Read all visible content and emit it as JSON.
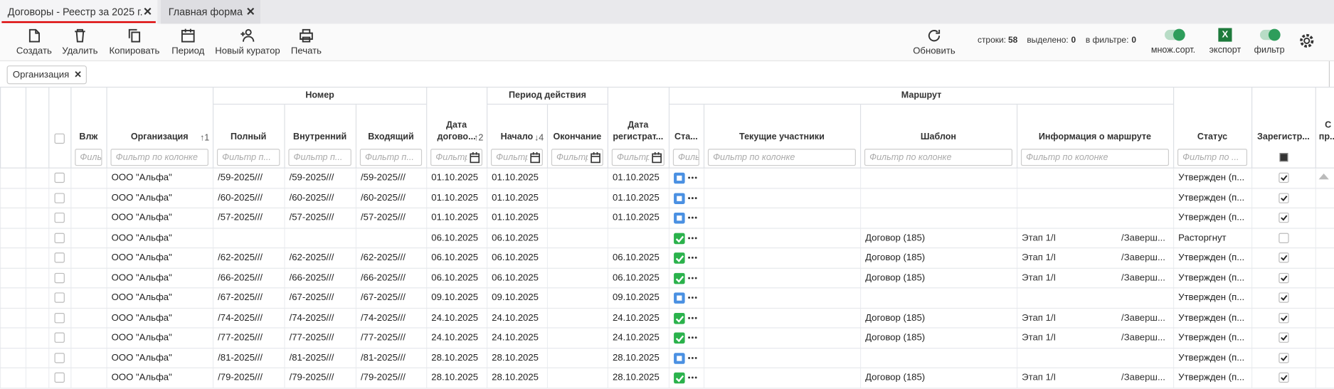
{
  "tabs": [
    {
      "label": "Договоры - Реестр за 2025 г.",
      "close": "✕"
    },
    {
      "label": "Главная форма",
      "close": "✕"
    }
  ],
  "toolbar": {
    "buttons": [
      "Создать",
      "Удалить",
      "Копировать",
      "Период",
      "Новый куратор",
      "Печать"
    ],
    "refresh": "Обновить",
    "status": [
      {
        "label": "строки:",
        "value": "58"
      },
      {
        "label": "выделено:",
        "value": "0"
      },
      {
        "label": "в фильтре:",
        "value": "0"
      }
    ],
    "toggles": {
      "multisort": "множ.сорт.",
      "export": "экспорт",
      "export_icon": "X",
      "filter": "фильтр"
    }
  },
  "filter_chip": {
    "label": "Организация",
    "close": "✕"
  },
  "table": {
    "groups": [
      "Номер",
      "Период действия",
      "Маршрут"
    ],
    "columns": [
      {
        "label": "Влж",
        "filter": "Фильт..."
      },
      {
        "label": "Организация",
        "sort": "↑1",
        "filter": "Фильтр по колонке"
      },
      {
        "label": "Полный",
        "filter": "Фильтр п..."
      },
      {
        "label": "Внутренний",
        "filter": "Фильтр п..."
      },
      {
        "label": "Входящий",
        "filter": "Фильтр п..."
      },
      {
        "label": "Дата догово...",
        "sort": "↑2",
        "filter": "Фильтр"
      },
      {
        "label": "Начало",
        "sort": "↓4",
        "filter": "Фильтр"
      },
      {
        "label": "Окончание",
        "filter": "Фильтр"
      },
      {
        "label": "Дата регистрат...",
        "filter": "Фильтр"
      },
      {
        "label": "Ста...",
        "filter": "Фильт..."
      },
      {
        "label": "Текущие участники",
        "filter": "Фильтр по колонке"
      },
      {
        "label": "Шаблон",
        "filter": "Фильтр по колонке"
      },
      {
        "label": "Информация о маршруте",
        "filter": "Фильтр по колонке"
      },
      {
        "label": "Статус",
        "filter": "Фильтр по ..."
      },
      {
        "label": "Зарегистр..."
      },
      {
        "label": "С пр..."
      }
    ],
    "rows": [
      {
        "org": "ООО \"Альфа\"",
        "full": "/59-2025///",
        "internal": "/59-2025///",
        "incoming": "/59-2025///",
        "contract_date": "01.10.2025",
        "start": "01.10.2025",
        "end": null,
        "reg_date": "01.10.2025",
        "stage_color": "#4a90e2",
        "template": null,
        "route": null,
        "status": "Утвержден (п...",
        "registered": true
      },
      {
        "org": "ООО \"Альфа\"",
        "full": "/60-2025///",
        "internal": "/60-2025///",
        "incoming": "/60-2025///",
        "contract_date": "01.10.2025",
        "start": "01.10.2025",
        "end": null,
        "reg_date": "01.10.2025",
        "stage_color": "#4a90e2",
        "template": null,
        "route": null,
        "status": "Утвержден (п...",
        "registered": true
      },
      {
        "org": "ООО \"Альфа\"",
        "full": "/57-2025///",
        "internal": "/57-2025///",
        "incoming": "/57-2025///",
        "contract_date": "01.10.2025",
        "start": "01.10.2025",
        "end": null,
        "reg_date": "01.10.2025",
        "stage_color": "#4a90e2",
        "template": null,
        "route": null,
        "status": "Утвержден (п...",
        "registered": true
      },
      {
        "org": "ООО \"Альфа\"",
        "full": null,
        "internal": null,
        "incoming": null,
        "contract_date": "06.10.2025",
        "start": "06.10.2025",
        "end": null,
        "reg_date": null,
        "stage_color": "#2bb24c",
        "template": "Договор (185)",
        "route": [
          "Этап 1/I",
          "/Заверш..."
        ],
        "status": "Расторгнут",
        "registered": false
      },
      {
        "org": "ООО \"Альфа\"",
        "full": "/62-2025///",
        "internal": "/62-2025///",
        "incoming": "/62-2025///",
        "contract_date": "06.10.2025",
        "start": "06.10.2025",
        "end": null,
        "reg_date": "06.10.2025",
        "stage_color": "#2bb24c",
        "template": "Договор (185)",
        "route": [
          "Этап 1/I",
          "/Заверш..."
        ],
        "status": "Утвержден (п...",
        "registered": true
      },
      {
        "org": "ООО \"Альфа\"",
        "full": "/66-2025///",
        "internal": "/66-2025///",
        "incoming": "/66-2025///",
        "contract_date": "06.10.2025",
        "start": "06.10.2025",
        "end": null,
        "reg_date": "06.10.2025",
        "stage_color": "#2bb24c",
        "template": "Договор (185)",
        "route": [
          "Этап 1/I",
          "/Заверш..."
        ],
        "status": "Утвержден (п...",
        "registered": true
      },
      {
        "org": "ООО \"Альфа\"",
        "full": "/67-2025///",
        "internal": "/67-2025///",
        "incoming": "/67-2025///",
        "contract_date": "09.10.2025",
        "start": "09.10.2025",
        "end": null,
        "reg_date": "09.10.2025",
        "stage_color": "#4a90e2",
        "template": null,
        "route": null,
        "status": "Утвержден (п...",
        "registered": true
      },
      {
        "org": "ООО \"Альфа\"",
        "full": "/74-2025///",
        "internal": "/74-2025///",
        "incoming": "/74-2025///",
        "contract_date": "24.10.2025",
        "start": "24.10.2025",
        "end": null,
        "reg_date": "24.10.2025",
        "stage_color": "#2bb24c",
        "template": "Договор (185)",
        "route": [
          "Этап 1/I",
          "/Заверш..."
        ],
        "status": "Утвержден (п...",
        "registered": true
      },
      {
        "org": "ООО \"Альфа\"",
        "full": "/77-2025///",
        "internal": "/77-2025///",
        "incoming": "/77-2025///",
        "contract_date": "24.10.2025",
        "start": "24.10.2025",
        "end": null,
        "reg_date": "24.10.2025",
        "stage_color": "#2bb24c",
        "template": "Договор (185)",
        "route": [
          "Этап 1/I",
          "/Заверш..."
        ],
        "status": "Утвержден (п...",
        "registered": true
      },
      {
        "org": "ООО \"Альфа\"",
        "full": "/81-2025///",
        "internal": "/81-2025///",
        "incoming": "/81-2025///",
        "contract_date": "28.10.2025",
        "start": "28.10.2025",
        "end": null,
        "reg_date": "28.10.2025",
        "stage_color": "#4a90e2",
        "template": null,
        "route": null,
        "status": "Утвержден (п...",
        "registered": true
      },
      {
        "org": "ООО \"Альфа\"",
        "full": "/79-2025///",
        "internal": "/79-2025///",
        "incoming": "/79-2025///",
        "contract_date": "28.10.2025",
        "start": "28.10.2025",
        "end": null,
        "reg_date": "28.10.2025",
        "stage_color": "#2bb24c",
        "template": "Договор (185)",
        "route": [
          "Этап 1/I",
          "/Заверш..."
        ],
        "status": "Утвержден (п...",
        "registered": true
      }
    ]
  }
}
